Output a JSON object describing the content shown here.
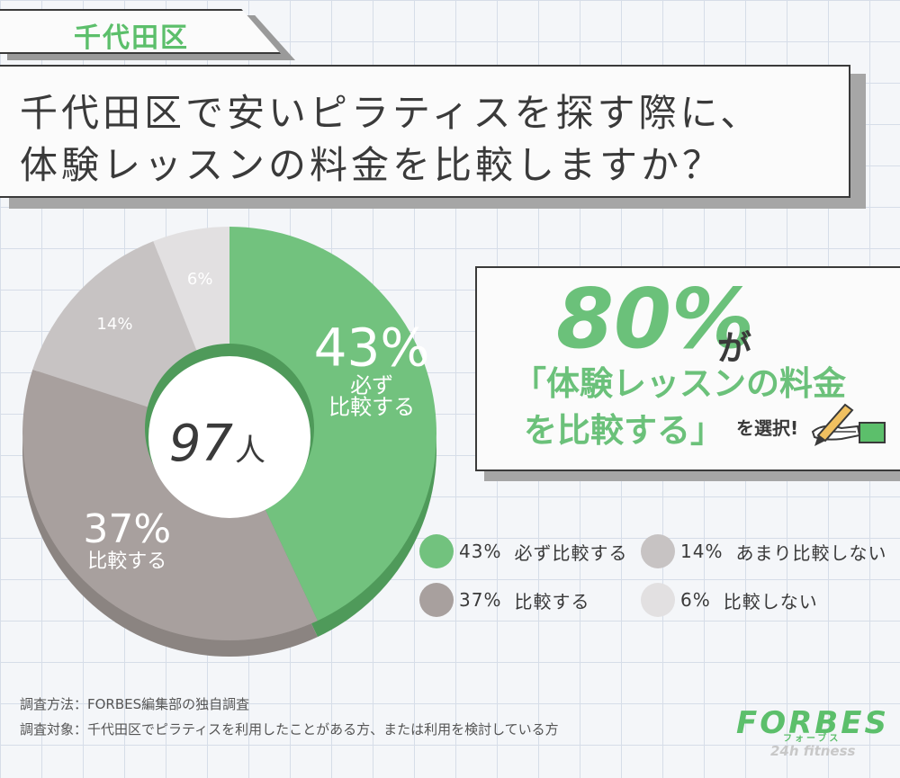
{
  "tag": "千代田区",
  "title": {
    "line1": "千代田区で安いピラティスを探す際に、",
    "line2": "体験レッスンの料金を比較しますか？"
  },
  "callout": {
    "big": "80%",
    "ga": "が",
    "line2": "「体験レッスンの料金",
    "line3": "を比較する」",
    "select": "を選択!"
  },
  "chart_data": {
    "type": "pie",
    "center_count": "97",
    "center_unit": "人",
    "slices": [
      {
        "label": "必ず比較する",
        "value": 43,
        "pct": "43%",
        "inner_label": "必ず\n比較する",
        "color": "#72c27e"
      },
      {
        "label": "比較する",
        "value": 37,
        "pct": "37%",
        "inner_label": "比較する",
        "color": "#a8a09e"
      },
      {
        "label": "あまり比較しない",
        "value": 14,
        "pct": "14%",
        "inner_label": "",
        "color": "#c7c3c3"
      },
      {
        "label": "比較しない",
        "value": 6,
        "pct": "6%",
        "inner_label": "",
        "color": "#e2e0e1"
      }
    ]
  },
  "legend": [
    {
      "pct": "43%",
      "label": "必ず比較する",
      "color": "#72c27e"
    },
    {
      "pct": "14%",
      "label": "あまり比較しない",
      "color": "#c7c3c3"
    },
    {
      "pct": "37%",
      "label": "比較する",
      "color": "#a8a09e"
    },
    {
      "pct": "6%",
      "label": "比較しない",
      "color": "#e2e0e1"
    }
  ],
  "footnotes": {
    "method": "調査方法：FORBES編集部の独自調査",
    "target": "調査対象：千代田区でピラティスを利用したことがある方、または利用を検討している方"
  },
  "logo": {
    "name": "FORBES",
    "kana": "フォーブス",
    "sub": "24h fitness"
  }
}
